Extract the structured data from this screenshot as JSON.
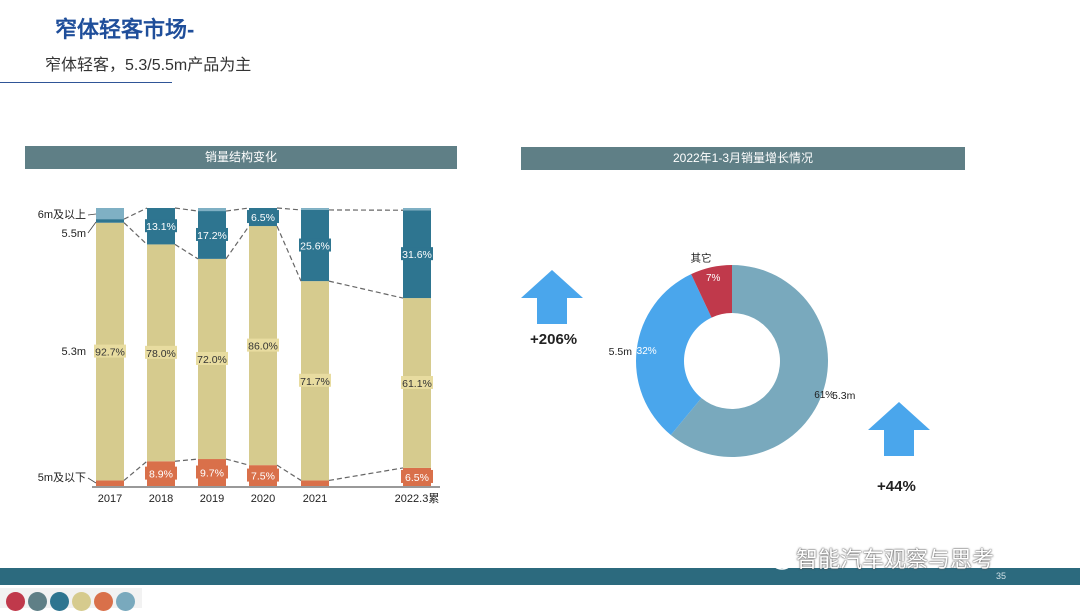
{
  "header": {
    "title": "窄体轻客市场-",
    "subtitle": "窄体轻客，5.3/5.5m产品为主"
  },
  "left_panel": {
    "heading": "销量结构变化"
  },
  "right_panel": {
    "heading": "2022年1-3月销量增长情况"
  },
  "growth": {
    "left_value": "+206%",
    "right_value": "+44%"
  },
  "colors": {
    "seg_5m_below": "#d9704a",
    "seg_5_3m": "#d6cb8e",
    "seg_5_5m": "#2e7590",
    "seg_6m_above": "#7fb0c4",
    "donut_5_3m": "#79a9bd",
    "donut_5_5m": "#4aa6ec",
    "donut_other": "#c0394b",
    "arrow": "#4aa6ec"
  },
  "chart_data": [
    {
      "type": "bar",
      "stacked": true,
      "normalized_percent": true,
      "categories": [
        "2017",
        "2018",
        "2019",
        "2020",
        "2021",
        "2022.3累"
      ],
      "row_labels": [
        "5m及以下",
        "5.3m",
        "5.5m",
        "6m及以上"
      ],
      "series": [
        {
          "name": "5m及以下",
          "values": [
            2.0,
            8.9,
            9.7,
            7.5,
            2.0,
            6.5
          ],
          "labels": [
            "",
            "8.9%",
            "9.7%",
            "7.5%",
            "",
            "6.5%"
          ]
        },
        {
          "name": "5.3m",
          "values": [
            92.7,
            78.0,
            72.0,
            86.0,
            71.7,
            61.1
          ],
          "labels": [
            "92.7%",
            "78.0%",
            "72.0%",
            "86.0%",
            "71.7%",
            "61.1%"
          ]
        },
        {
          "name": "5.5m",
          "values": [
            1.3,
            13.1,
            17.2,
            6.5,
            25.6,
            31.6
          ],
          "labels": [
            "",
            "13.1%",
            "17.2%",
            "6.5%",
            "25.6%",
            "31.6%"
          ]
        },
        {
          "name": "6m及以上",
          "values": [
            4.0,
            0.0,
            1.1,
            0.0,
            0.7,
            0.8
          ],
          "labels": [
            "",
            "",
            "",
            "",
            "",
            ""
          ]
        }
      ],
      "ylim": [
        0,
        100
      ],
      "grid": false,
      "legend": "left-row-labels"
    },
    {
      "type": "pie",
      "donut": true,
      "slices": [
        {
          "name": "5.3m",
          "value": 61,
          "label": "61%"
        },
        {
          "name": "5.5m",
          "value": 32,
          "label": "32%"
        },
        {
          "name": "其它",
          "value": 7,
          "label": "7%"
        }
      ],
      "legend": "outside-labels"
    }
  ],
  "footer": {
    "page_number": "35",
    "watermark": "智能汽车观察与思考"
  },
  "swatches": [
    "#c0394b",
    "#5f7f86",
    "#2e7590",
    "#d6cb8e",
    "#d9704a",
    "#79a9bd"
  ]
}
